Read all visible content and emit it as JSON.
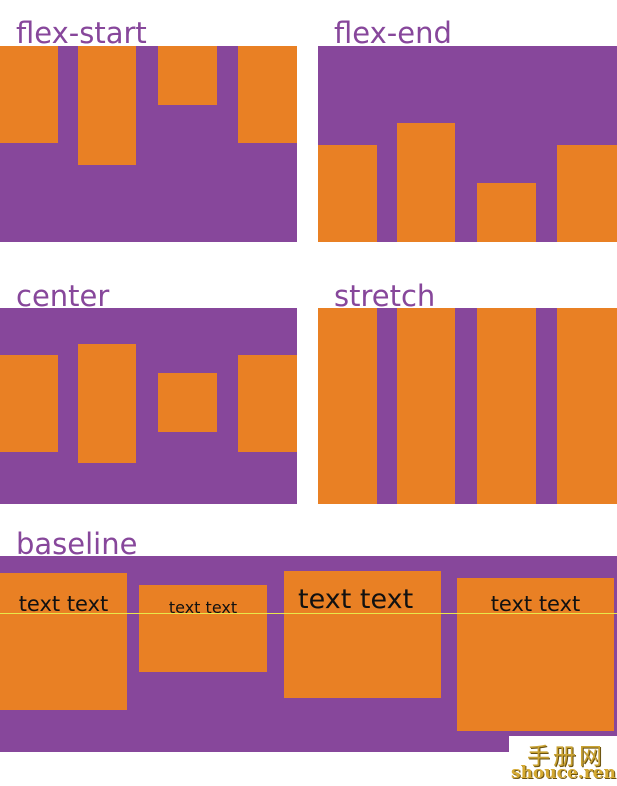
{
  "colors": {
    "panel": "#87479b",
    "item": "#e98024",
    "title": "#87479b",
    "baseline_line": "#e8e84a"
  },
  "sections": {
    "flex_start": {
      "title": "flex-start"
    },
    "flex_end": {
      "title": "flex-end"
    },
    "center": {
      "title": "center"
    },
    "stretch": {
      "title": "stretch"
    },
    "baseline": {
      "title": "baseline",
      "items": [
        {
          "label": "text text"
        },
        {
          "label": "text text"
        },
        {
          "label": "text text"
        },
        {
          "label": "text text"
        }
      ]
    }
  },
  "watermark": {
    "cn": "手册网",
    "en": "shouce.ren"
  }
}
